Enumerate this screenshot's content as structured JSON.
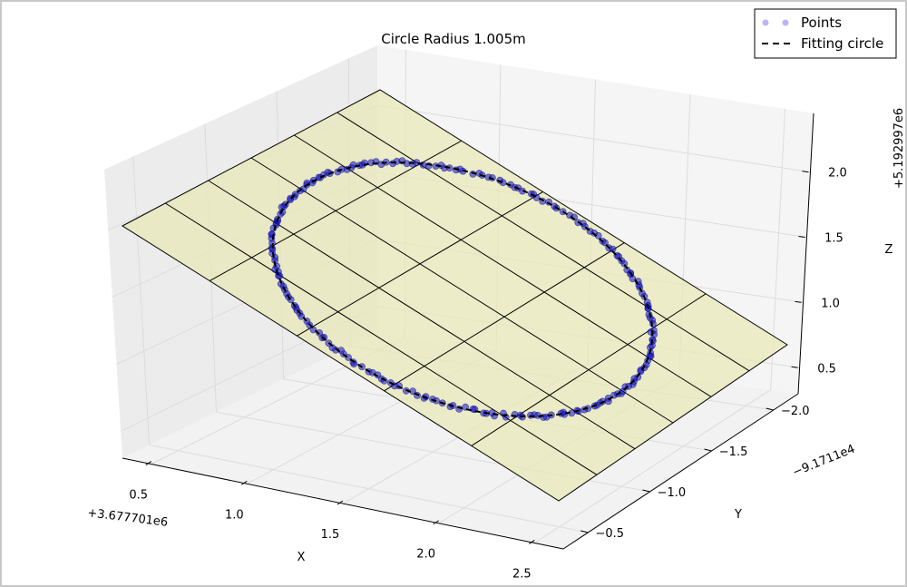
{
  "chart_data": {
    "type": "scatter",
    "projection": "3d",
    "title": "Circle Radius 1.005m",
    "xlabel": "X",
    "ylabel": "Y",
    "zlabel": "Z",
    "x_offset_label": "+3.677701e6",
    "y_offset_label": "−9.1711e4",
    "z_offset_label": "+5.192997e6",
    "x_ticks": [
      "0.5",
      "1.0",
      "1.5",
      "2.0",
      "2.5"
    ],
    "y_ticks": [
      "−2.0",
      "−1.5",
      "−1.0",
      "−0.5"
    ],
    "z_ticks": [
      "0.5",
      "1.0",
      "1.5",
      "2.0"
    ],
    "xlim": [
      0.35,
      2.65
    ],
    "ylim": [
      -2.2,
      -0.3
    ],
    "zlim": [
      0.3,
      2.45
    ],
    "grid": true,
    "legend": {
      "placement": "top-right",
      "entries": [
        {
          "label": "Points",
          "marker": "o",
          "color": "#5a64e6"
        },
        {
          "label": "Fitting circle",
          "linestyle": "dashed",
          "color": "#000000"
        }
      ]
    },
    "series": [
      {
        "name": "Points",
        "kind": "scatter",
        "color": "#0000cc"
      },
      {
        "name": "Fitting circle",
        "kind": "line",
        "color": "#000000",
        "radius": 1.005
      }
    ],
    "plane_color": "#e8e8b8"
  }
}
